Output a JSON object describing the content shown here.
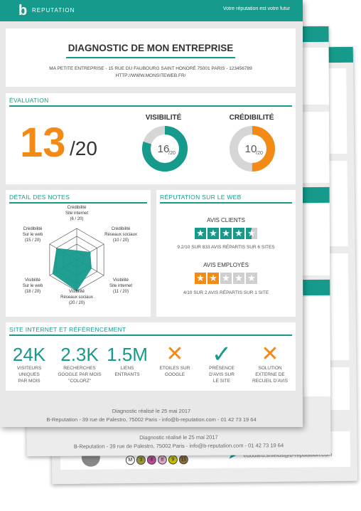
{
  "header": {
    "logo_letter": "b",
    "brand": "REPUTATION",
    "slogan": "Votre réputation est votre futur"
  },
  "company": {
    "title": "DIAGNOSTIC DE MON ENTREPRISE",
    "address": "MA PETITE ENTREPRISE - 15 RUE DU FAUBOURG SAINT HONORÉ 75001 PARIS - 123456789",
    "website": "HTTP://WWW.MONSITEWEB.FR/"
  },
  "evaluation": {
    "section_title": "ÉVALUATION",
    "score": "13",
    "score_total": "/20",
    "visibility": {
      "label": "VISIBILITÉ",
      "value": "16",
      "max": "/20",
      "fraction": 0.8
    },
    "credibility": {
      "label": "CRÉDIBILITÉ",
      "value": "10",
      "max": "/20",
      "fraction": 0.5
    }
  },
  "notes": {
    "section_title": "DÉTAIL DES NOTES",
    "axes": [
      {
        "line1": "Crédibilité",
        "line2": "Site internet",
        "line3": "(6 / 20)",
        "value": 6
      },
      {
        "line1": "Crédibilité",
        "line2": "Réseaux sociaux",
        "line3": "(10 / 20)",
        "value": 10
      },
      {
        "line1": "Visibilité",
        "line2": "Site internet",
        "line3": "(11 / 20)",
        "value": 11
      },
      {
        "line1": "Visibilité",
        "line2": "Réseaux sociaux",
        "line3": "(20 / 20)",
        "value": 20
      },
      {
        "line1": "Visibilité",
        "line2": "Sur le web",
        "line3": "(18 / 20)",
        "value": 18
      },
      {
        "line1": "Crédibilité",
        "line2": "Sur le web",
        "line3": "(15 / 20)",
        "value": 15
      }
    ]
  },
  "web_reputation": {
    "section_title": "RÉPUTATION SUR LE WEB",
    "clients": {
      "title": "AVIS CLIENTS",
      "rating": 4.5,
      "summary_score": "9.2/10",
      "summary_text": "SUR 833 AVIS RÉPARTIS SUR 6 SITES"
    },
    "employees": {
      "title": "AVIS EMPLOYÉS",
      "rating": 2,
      "summary_score": "4/10",
      "summary_text": "SUR 2 AVIS RÉPARTIS SUR 1 SITE"
    }
  },
  "seo": {
    "section_title": "SITE INTERNET ET RÉFÉRENCEMENT",
    "kpis": [
      {
        "value": "24K",
        "label1": "VISITEURS",
        "label2": "UNIQUES",
        "label3": "PAR MOIS"
      },
      {
        "value": "2.3K",
        "label1": "RECHERCHES",
        "label2": "GOOGLE PAR MOIS",
        "label3": "\"COLORZ\""
      },
      {
        "value": "1.5M",
        "label1": "LIENS",
        "label2": "ENTRANTS",
        "label3": ""
      }
    ],
    "checks": [
      {
        "icon": "cross",
        "label1": "ETOILES SUR",
        "label2": "GOOGLE",
        "label3": ""
      },
      {
        "icon": "check",
        "label1": "PRÉSENCE",
        "label2": "D'AVIS SUR",
        "label3": "LE SITE"
      },
      {
        "icon": "cross",
        "label1": "SOLUTION",
        "label2": "EXTERNE DE",
        "label3": "RECUEIL D'AVIS"
      }
    ]
  },
  "footer": {
    "date": "Diagnostic réalisé le 25 mai 2017",
    "address": "B-Reputation - 39 rue de Palestro, 75002 Paris - info@b-reputation.com - 01 42 73 19 64"
  },
  "page2": {
    "date": "Diagnostic réalisé le 25 mai 2017",
    "address": "B-Reputation - 39 rue de Palestro, 75002 Paris - info@b-reputation.com - 01 42 73 19 64"
  },
  "page3": {
    "metro_lines": [
      "M",
      "3",
      "4",
      "8",
      "9",
      "11"
    ],
    "email": "edouard.shields@b-reputation.com"
  },
  "colors": {
    "teal": "#159a8c",
    "orange": "#f28a15",
    "grey": "#d6d6d6"
  }
}
